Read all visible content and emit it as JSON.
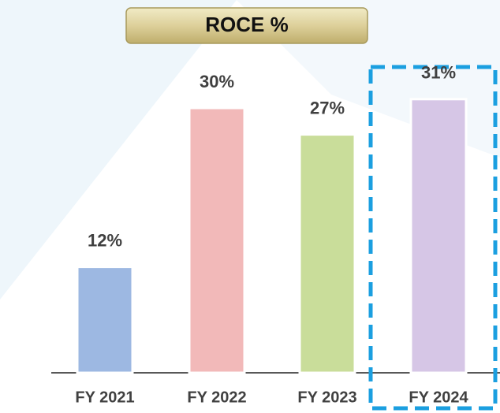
{
  "chart_data": {
    "type": "bar",
    "title": "ROCE %",
    "categories": [
      "FY 2021",
      "FY 2022",
      "FY 2023",
      "FY 2024"
    ],
    "values": [
      12,
      30,
      27,
      31
    ],
    "value_labels": [
      "12%",
      "30%",
      "27%",
      "31%"
    ],
    "colors": [
      "#9db8e2",
      "#f2b9b9",
      "#c9dd9a",
      "#d6c6e6"
    ]
  }
}
